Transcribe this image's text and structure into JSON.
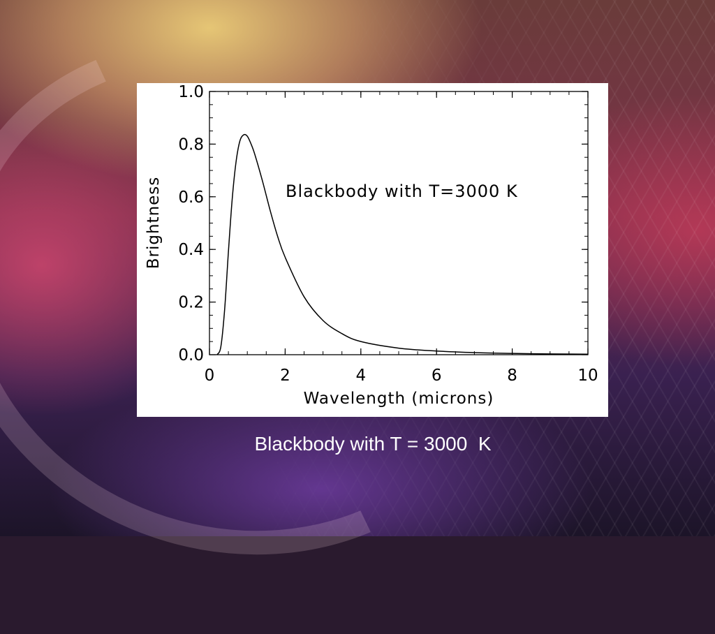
{
  "slide": {
    "caption": "Blackbody with T = 3000  K"
  },
  "chart_data": {
    "type": "line",
    "annotation": "Blackbody with T=3000 K",
    "xlabel": "Wavelength (microns)",
    "ylabel": "Brightness",
    "xlim": [
      0,
      10
    ],
    "ylim": [
      0,
      1.0
    ],
    "x_ticks": [
      "0",
      "2",
      "4",
      "6",
      "8",
      "10"
    ],
    "y_ticks": [
      "0.0",
      "0.2",
      "0.4",
      "0.6",
      "0.8",
      "1.0"
    ],
    "grid": false,
    "series": [
      {
        "x": [
          0.2,
          0.3,
          0.4,
          0.5,
          0.6,
          0.7,
          0.8,
          0.9,
          1.0,
          1.1,
          1.2,
          1.4,
          1.6,
          1.8,
          2.0,
          2.5,
          3.0,
          3.5,
          4.0,
          5.0,
          6.0,
          7.0,
          8.0,
          9.0,
          10.0
        ],
        "y": [
          0.0,
          0.03,
          0.17,
          0.39,
          0.59,
          0.73,
          0.81,
          0.835,
          0.83,
          0.8,
          0.76,
          0.66,
          0.55,
          0.45,
          0.37,
          0.22,
          0.13,
          0.08,
          0.05,
          0.025,
          0.014,
          0.008,
          0.005,
          0.003,
          0.002
        ]
      }
    ]
  }
}
